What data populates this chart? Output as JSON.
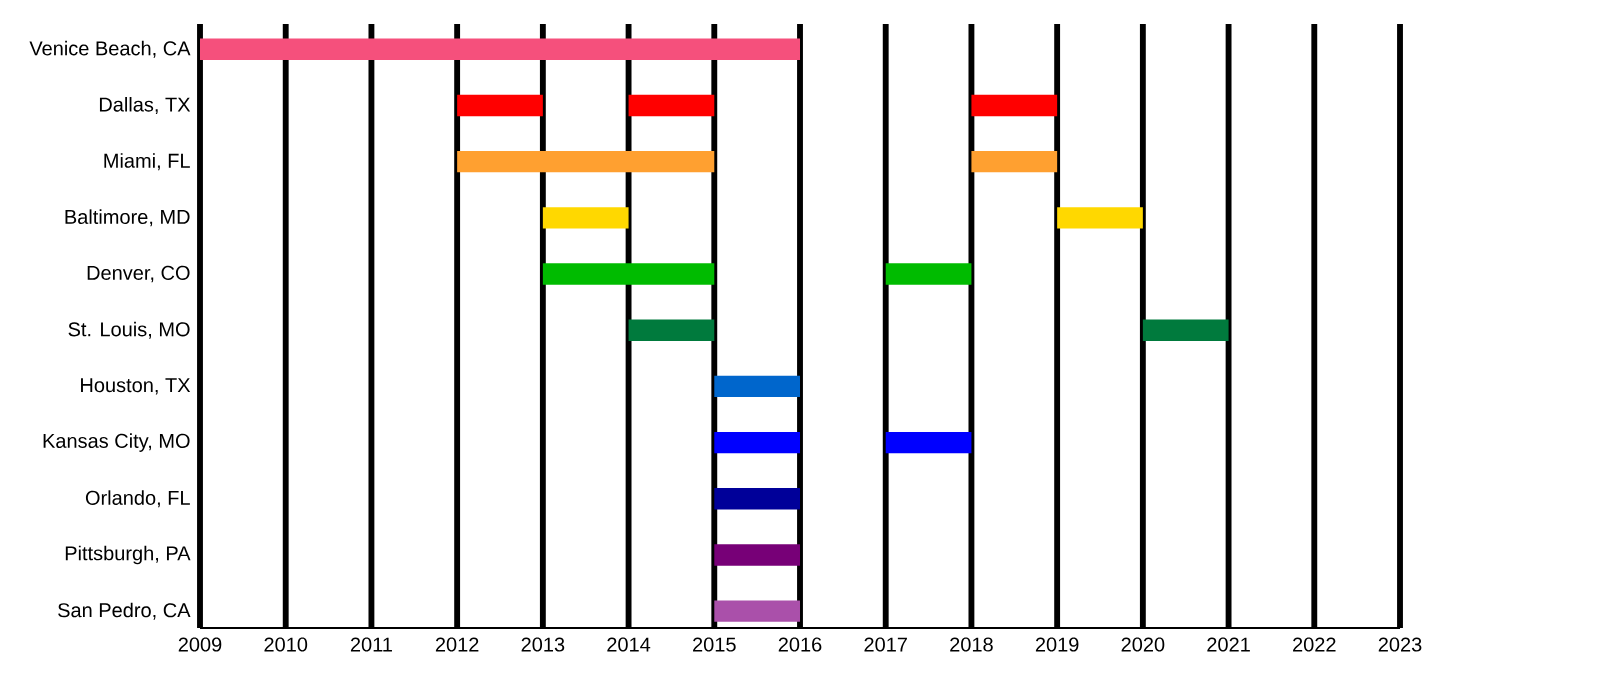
{
  "chart_data": {
    "type": "bar",
    "orientation": "horizontal",
    "grid": "x",
    "categories": [
      "Venice Beach, CA",
      "Dallas, TX",
      "Miami, FL",
      "Baltimore, MD",
      "Denver, CO",
      "St. Louis, MO",
      "Houston, TX",
      "Kansas City, MO",
      "Orlando, FL",
      "Pittsburgh, PA",
      "San Pedro, CA"
    ],
    "xlim": [
      2009,
      2023
    ],
    "xticks": [
      2009,
      2010,
      2011,
      2012,
      2013,
      2014,
      2015,
      2016,
      2017,
      2018,
      2019,
      2020,
      2021,
      2022,
      2023
    ],
    "series": [
      {
        "base": [
          2009,
          2012,
          2012,
          2013,
          2013,
          2014,
          2015,
          2015,
          2015,
          2015,
          2015
        ],
        "values": [
          7,
          1,
          3,
          1,
          2,
          1,
          1,
          1,
          1,
          1,
          1
        ],
        "colors": [
          "#f5507c",
          "#ff0000",
          "#ffa030",
          "#ffd800",
          "#00bb00",
          "#007a3d",
          "#0066cc",
          "#0000ff",
          "#000099",
          "#770077",
          "#aa50aa"
        ]
      },
      {
        "base": [
          null,
          2014,
          2018,
          2019,
          2017,
          2020,
          null,
          2017,
          null,
          null,
          null
        ],
        "values": [
          null,
          1,
          1,
          1,
          1,
          1,
          null,
          1,
          null,
          null,
          null
        ],
        "colors": [
          "#f5507c",
          "#ff0000",
          "#ffa030",
          "#ffd800",
          "#00bb00",
          "#007a3d",
          "#0066cc",
          "#0000ff",
          "#000099",
          "#770077",
          "#aa50aa"
        ]
      },
      {
        "base": [
          null,
          2018,
          null,
          null,
          null,
          null,
          null,
          null,
          null,
          null,
          null
        ],
        "values": [
          null,
          1,
          null,
          null,
          null,
          null,
          null,
          null,
          null,
          null,
          null
        ],
        "colors": [
          "#f5507c",
          "#ff0000",
          "#ffa030",
          "#ffd800",
          "#00bb00",
          "#007a3d",
          "#0066cc",
          "#0000ff",
          "#000099",
          "#770077",
          "#aa50aa"
        ]
      }
    ]
  }
}
